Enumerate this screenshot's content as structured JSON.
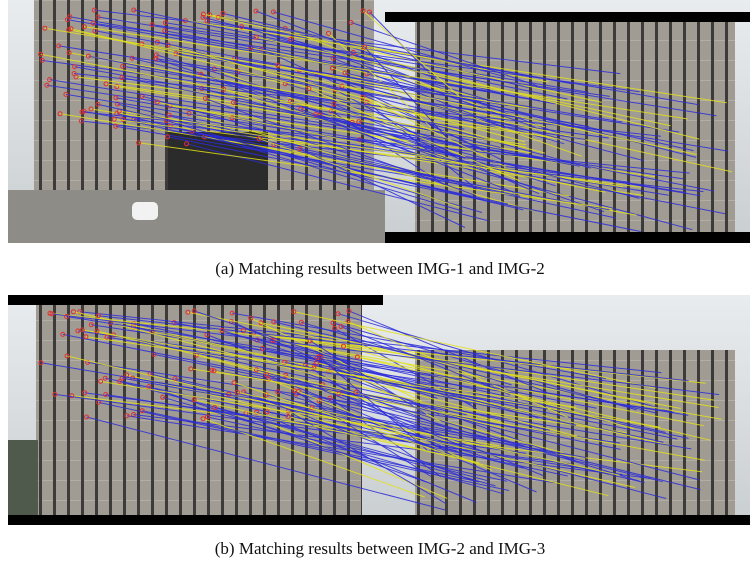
{
  "figures": [
    {
      "caption": "(a) Matching results between IMG-1 and IMG-2"
    },
    {
      "caption": "(b) Matching results between IMG-2 and IMG-3"
    }
  ]
}
